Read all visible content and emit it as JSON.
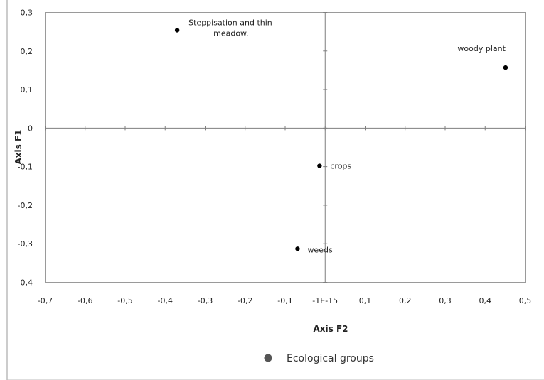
{
  "chart_data": {
    "type": "scatter",
    "xlabel": "Axis F2",
    "ylabel": "Axis F1",
    "xlim": [
      -0.7,
      0.5
    ],
    "ylim": [
      -0.4,
      0.3
    ],
    "x_ticks": [
      {
        "value": -0.7,
        "label": "-0,7"
      },
      {
        "value": -0.6,
        "label": "-0,6"
      },
      {
        "value": -0.5,
        "label": "-0,5"
      },
      {
        "value": -0.4,
        "label": "-0,4"
      },
      {
        "value": -0.3,
        "label": "-0,3"
      },
      {
        "value": -0.2,
        "label": "-0,2"
      },
      {
        "value": -0.1,
        "label": "-0,1"
      },
      {
        "value": 0.0,
        "label": "-1E-15"
      },
      {
        "value": 0.1,
        "label": "0,1"
      },
      {
        "value": 0.2,
        "label": "0,2"
      },
      {
        "value": 0.3,
        "label": "0,3"
      },
      {
        "value": 0.4,
        "label": "0,4"
      },
      {
        "value": 0.5,
        "label": "0,5"
      }
    ],
    "y_ticks": [
      {
        "value": 0.3,
        "label": "0,3"
      },
      {
        "value": 0.2,
        "label": "0,2"
      },
      {
        "value": 0.1,
        "label": "0,1"
      },
      {
        "value": 0.0,
        "label": "0"
      },
      {
        "value": -0.1,
        "label": "-0,1"
      },
      {
        "value": -0.2,
        "label": "-0,2"
      },
      {
        "value": -0.3,
        "label": "-0,3"
      },
      {
        "value": -0.4,
        "label": "-0,4"
      }
    ],
    "series": [
      {
        "name": "Ecological groups",
        "points": [
          {
            "x": -0.37,
            "y": 0.254,
            "label": [
              "Steppisation and thin",
              "meadow."
            ]
          },
          {
            "x": 0.451,
            "y": 0.157,
            "label": [
              "woody plant"
            ]
          },
          {
            "x": -0.014,
            "y": -0.098,
            "label": [
              "crops"
            ]
          },
          {
            "x": -0.069,
            "y": -0.313,
            "label": [
              "weeds"
            ]
          }
        ]
      }
    ],
    "legend": {
      "position": "bottom",
      "label": "Ecological groups"
    },
    "grid": false,
    "colors": {
      "point": "#000000",
      "legend_marker": "#555555",
      "axis": "#7f7f7f"
    }
  }
}
